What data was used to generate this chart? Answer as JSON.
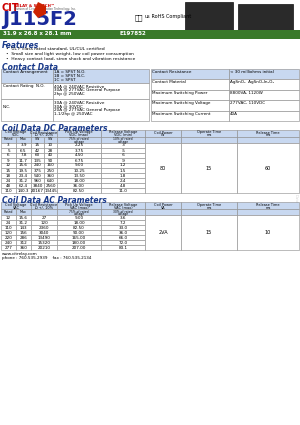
{
  "title": "J115F2",
  "dimensions": "31.9 x 26.8 x 28.1 mm",
  "file_number": "E197852",
  "features": [
    "UL F class rated standard, UL/CUL certified",
    "Small size and light weight, low coil power consumption",
    "Heavy contact load, stron shock and vibration resistance"
  ],
  "contact_data_right": [
    [
      "Contact Resistance",
      "< 30 milliohms initial"
    ],
    [
      "Contact Material",
      "AgSnO₂  AgSnO₂In₂O₃"
    ],
    [
      "Maximum Switching Power",
      "8800VA, 1120W"
    ],
    [
      "Maximum Switching Voltage",
      "277VAC, 110VDC"
    ],
    [
      "Maximum Switching Current",
      "40A"
    ]
  ],
  "coil_dc_data": [
    [
      "3",
      "3.9",
      "15",
      "10",
      "2.25",
      ".3"
    ],
    [
      "5",
      "6.5",
      "42",
      "28",
      "3.75",
      ".5"
    ],
    [
      "6",
      "7.8",
      "60",
      "40",
      "4.50",
      ".6"
    ],
    [
      "9",
      "11.7",
      "135",
      "90",
      "6.75",
      ".9"
    ],
    [
      "12",
      "15.6",
      "240",
      "160",
      "9.00",
      "1.2"
    ],
    [
      "15",
      "19.5",
      "375",
      "250",
      "10.25",
      "1.5"
    ],
    [
      "18",
      "23.4",
      "540",
      "360",
      "13.50",
      "1.8"
    ],
    [
      "24",
      "31.2",
      "960",
      "640",
      "18.00",
      "2.4"
    ],
    [
      "48",
      "62.4",
      "3840",
      "2560",
      "36.00",
      "4.8"
    ],
    [
      "110",
      "140.3",
      "20167",
      "13445",
      "82.50",
      "11.0"
    ]
  ],
  "coil_dc_merged": [
    "80",
    "15",
    "60"
  ],
  "coil_ac_data": [
    [
      "12",
      "15.6",
      "27",
      "9.00",
      "3.6"
    ],
    [
      "24",
      "31.2",
      "120",
      "18.00",
      "7.2"
    ],
    [
      "110",
      "143",
      "2360",
      "82.50",
      "33.0"
    ],
    [
      "120",
      "156",
      "3040",
      "90.00",
      "36.0"
    ],
    [
      "220",
      "286",
      "13490",
      "165.00",
      "66.0"
    ],
    [
      "240",
      "312",
      "15320",
      "180.00",
      "72.0"
    ],
    [
      "277",
      "360",
      "20210",
      "207.00",
      "83.1"
    ]
  ],
  "coil_ac_merged": [
    "2VA",
    "15",
    "10"
  ],
  "website": "www.citrelay.com",
  "phone": "phone : 760.535.2939    fax : 760.535.2134",
  "green_bar_color": "#3a7a2a",
  "light_blue_header": "#c8d8f0",
  "section_title_color": "#1a3a8a",
  "bg_color": "#ffffff"
}
